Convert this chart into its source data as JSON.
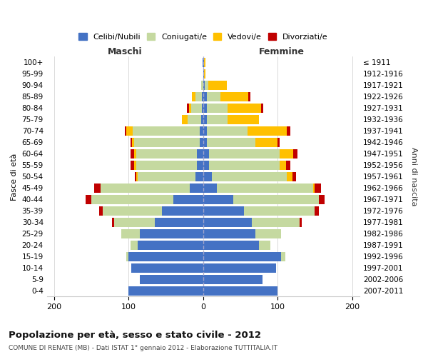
{
  "age_groups": [
    "0-4",
    "5-9",
    "10-14",
    "15-19",
    "20-24",
    "25-29",
    "30-34",
    "35-39",
    "40-44",
    "45-49",
    "50-54",
    "55-59",
    "60-64",
    "65-69",
    "70-74",
    "75-79",
    "80-84",
    "85-89",
    "90-94",
    "95-99",
    "100+"
  ],
  "birth_years": [
    "2007-2011",
    "2002-2006",
    "1997-2001",
    "1992-1996",
    "1987-1991",
    "1982-1986",
    "1977-1981",
    "1972-1976",
    "1967-1971",
    "1962-1966",
    "1957-1961",
    "1952-1956",
    "1947-1951",
    "1942-1946",
    "1937-1941",
    "1932-1936",
    "1927-1931",
    "1922-1926",
    "1917-1921",
    "1912-1916",
    "≤ 1911"
  ],
  "male_celibi": [
    100,
    85,
    97,
    100,
    88,
    85,
    65,
    55,
    40,
    18,
    10,
    8,
    8,
    5,
    5,
    3,
    2,
    2,
    0,
    0,
    1
  ],
  "male_coniugati": [
    0,
    0,
    0,
    3,
    10,
    25,
    55,
    80,
    110,
    120,
    78,
    82,
    82,
    88,
    90,
    18,
    14,
    8,
    3,
    0,
    0
  ],
  "male_vedovi": [
    0,
    0,
    0,
    0,
    0,
    0,
    0,
    0,
    0,
    0,
    2,
    3,
    3,
    3,
    8,
    8,
    3,
    5,
    0,
    0,
    0
  ],
  "male_divorziati": [
    0,
    0,
    0,
    0,
    0,
    0,
    2,
    5,
    8,
    8,
    2,
    5,
    5,
    2,
    2,
    0,
    3,
    0,
    0,
    0,
    0
  ],
  "female_celibi": [
    100,
    80,
    98,
    105,
    75,
    70,
    65,
    55,
    40,
    18,
    12,
    8,
    8,
    5,
    5,
    5,
    5,
    5,
    2,
    1,
    1
  ],
  "female_coniugati": [
    0,
    0,
    0,
    5,
    15,
    35,
    65,
    95,
    115,
    130,
    100,
    95,
    95,
    65,
    55,
    28,
    28,
    18,
    5,
    0,
    0
  ],
  "female_vedovi": [
    0,
    0,
    0,
    0,
    0,
    0,
    0,
    0,
    0,
    2,
    8,
    8,
    18,
    30,
    52,
    42,
    45,
    38,
    25,
    2,
    2
  ],
  "female_divorziati": [
    0,
    0,
    0,
    0,
    0,
    0,
    2,
    5,
    8,
    8,
    5,
    6,
    6,
    3,
    5,
    0,
    3,
    2,
    0,
    0,
    0
  ],
  "colors": {
    "celibi": "#4472c4",
    "coniugati": "#c5d9a0",
    "vedovi": "#ffc000",
    "divorziati": "#c00000"
  },
  "xlim_min": -210,
  "xlim_max": 210,
  "xticks": [
    -200,
    -100,
    0,
    100,
    200
  ],
  "xticklabels": [
    "200",
    "100",
    "0",
    "100",
    "200"
  ],
  "title": "Popolazione per età, sesso e stato civile - 2012",
  "subtitle": "COMUNE DI RENATE (MB) - Dati ISTAT 1° gennaio 2012 - Elaborazione TUTTITALIA.IT",
  "ylabel_left": "Fasce di età",
  "ylabel_right": "Anni di nascita",
  "label_maschi": "Maschi",
  "label_femmine": "Femmine",
  "legend_labels": [
    "Celibi/Nubili",
    "Coniugati/e",
    "Vedovi/e",
    "Divorziati/e"
  ],
  "background_color": "#ffffff",
  "grid_color": "#cccccc",
  "bar_height": 0.82
}
